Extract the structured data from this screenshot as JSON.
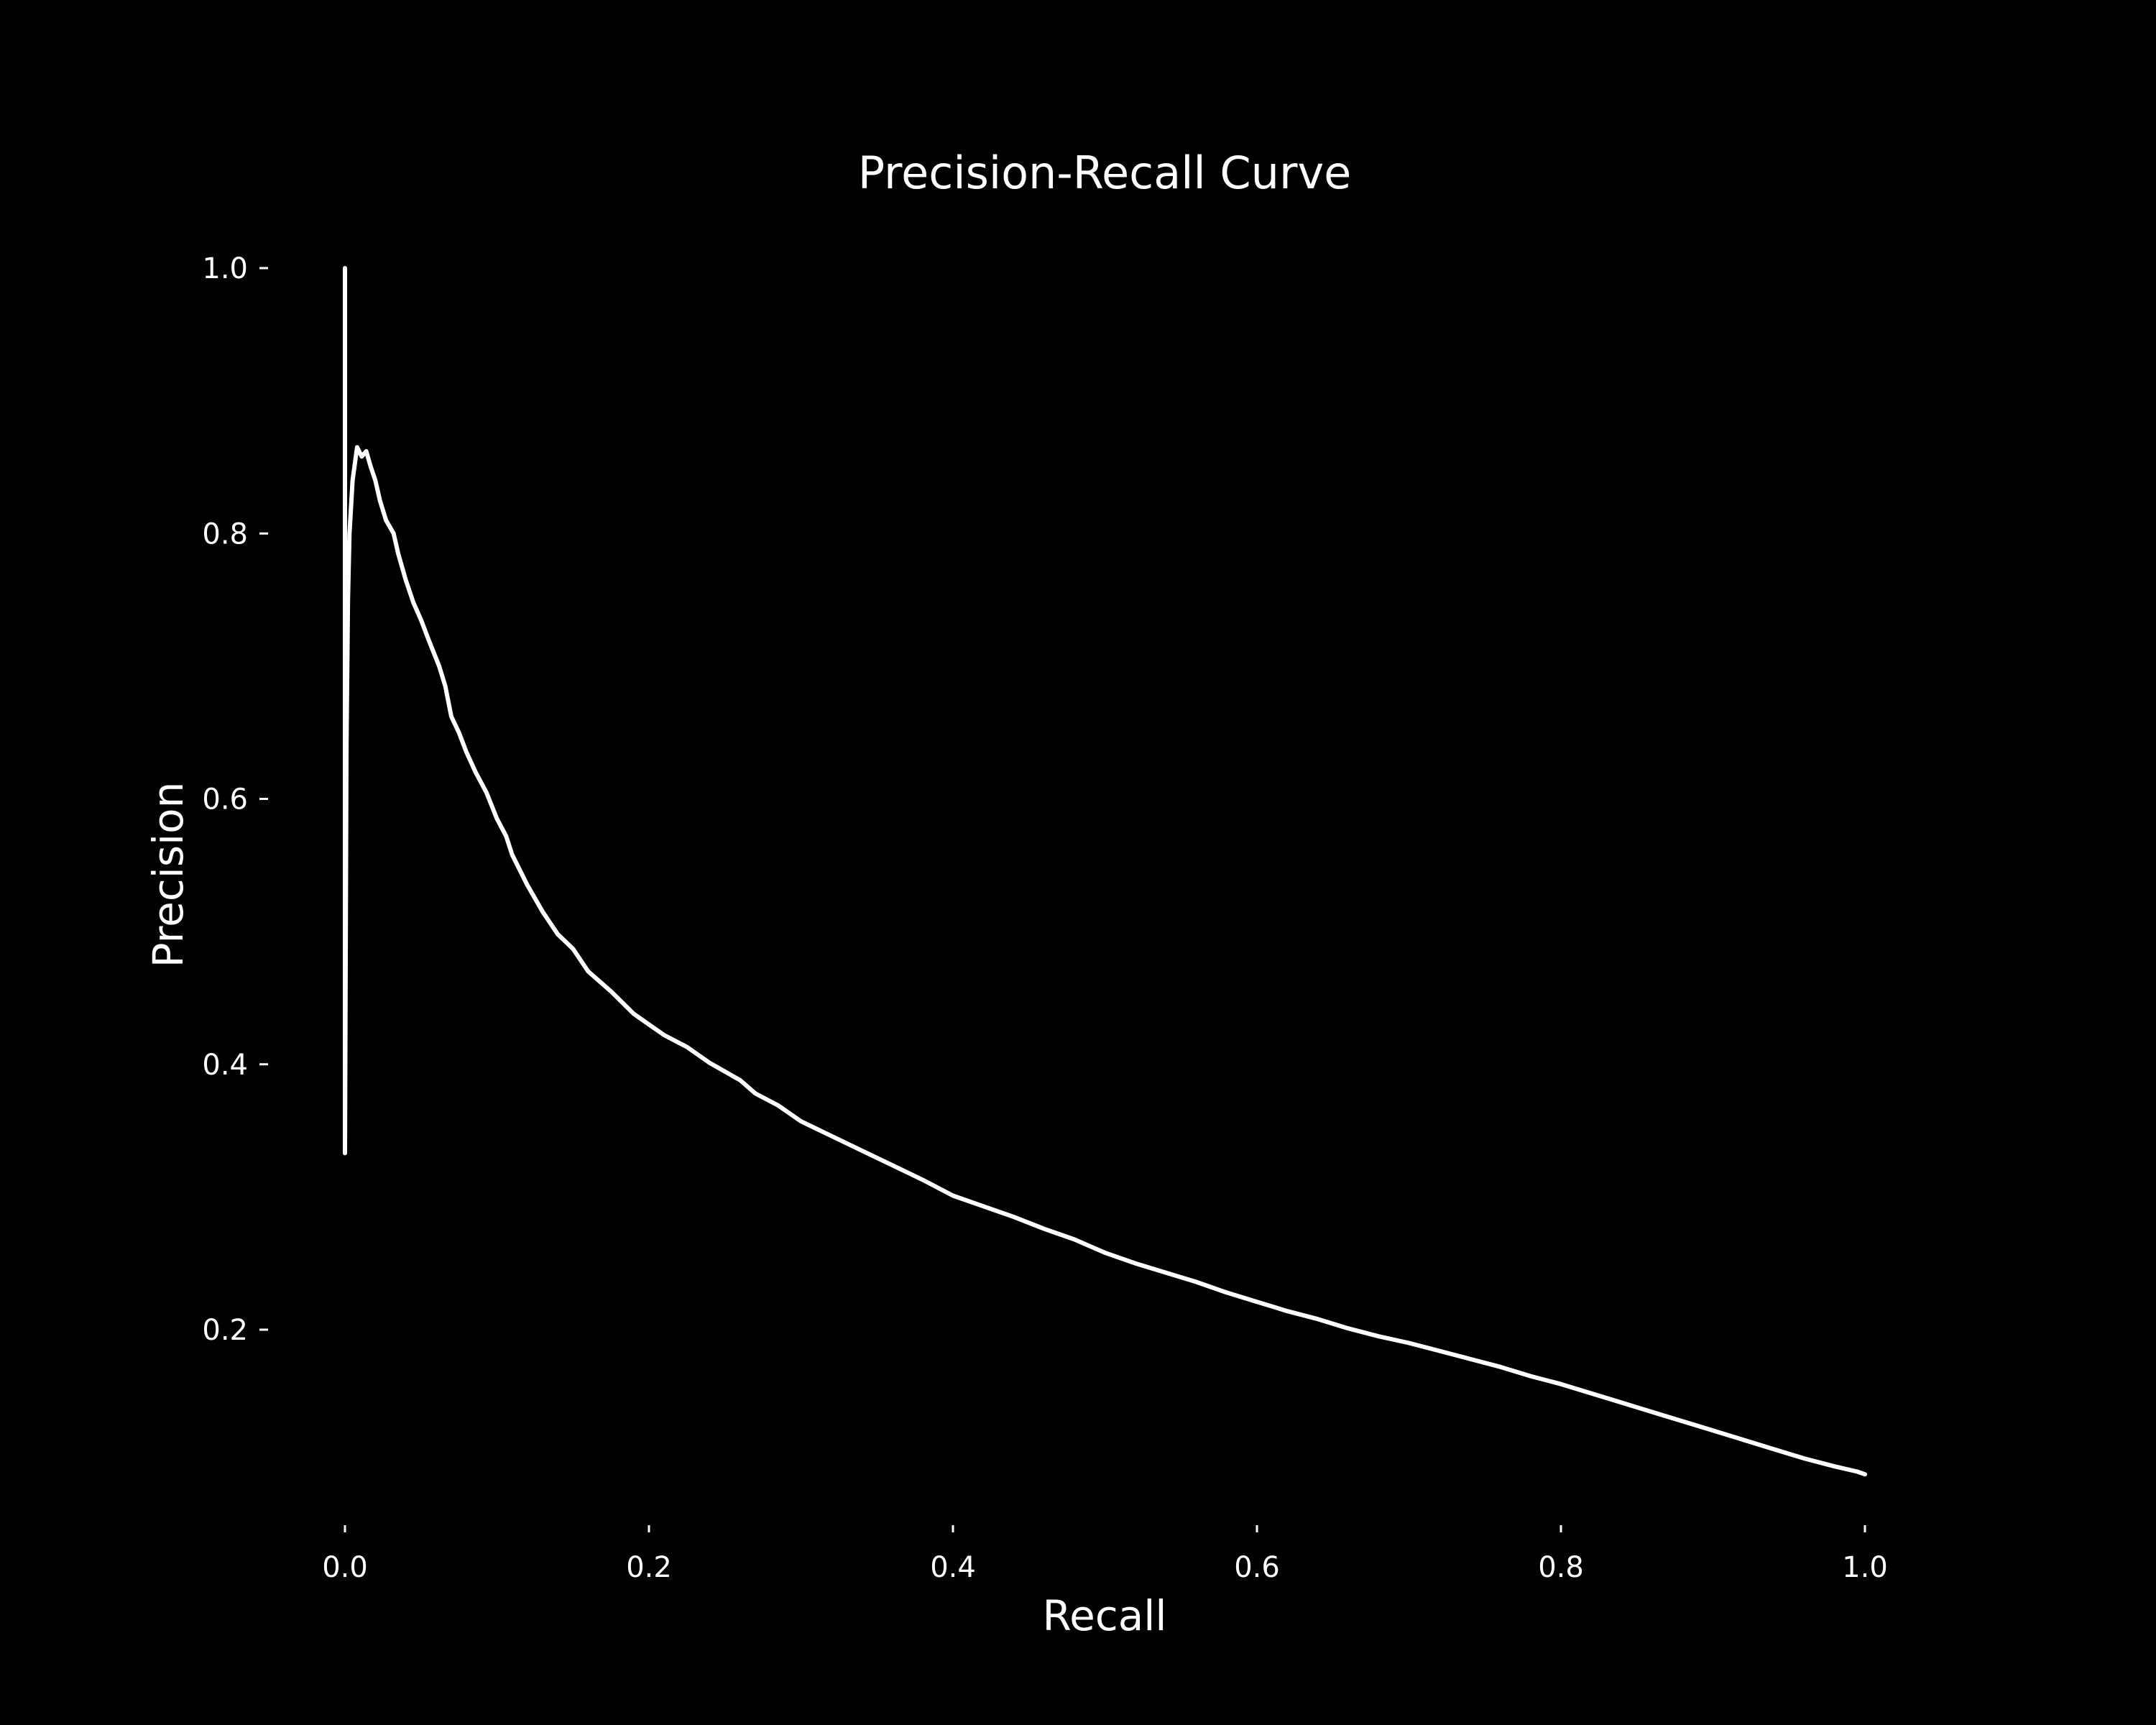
{
  "chart_data": {
    "type": "line",
    "title": "Precision-Recall Curve",
    "xlabel": "Recall",
    "ylabel": "Precision",
    "xlim": [
      -0.05,
      1.05
    ],
    "ylim": [
      0.0557,
      1.0
    ],
    "grid": false,
    "legend": "none",
    "colors": {
      "background": "#000000",
      "line": "#ffffff",
      "text": "#ffffff"
    },
    "xticks": [
      {
        "value": 0.0,
        "label": "0.0"
      },
      {
        "value": 0.2,
        "label": "0.2"
      },
      {
        "value": 0.4,
        "label": "0.4"
      },
      {
        "value": 0.6,
        "label": "0.6"
      },
      {
        "value": 0.8,
        "label": "0.8"
      },
      {
        "value": 1.0,
        "label": "1.0"
      }
    ],
    "yticks": [
      {
        "value": 0.2,
        "label": "0.2"
      },
      {
        "value": 0.4,
        "label": "0.4"
      },
      {
        "value": 0.6,
        "label": "0.6"
      },
      {
        "value": 0.8,
        "label": "0.8"
      },
      {
        "value": 1.0,
        "label": "1.0"
      }
    ],
    "series": [
      {
        "points": [
          [
            0.0,
            1.0
          ],
          [
            0.0,
            0.333
          ],
          [
            0.001,
            0.64
          ],
          [
            0.002,
            0.75
          ],
          [
            0.003,
            0.8
          ],
          [
            0.005,
            0.84
          ],
          [
            0.008,
            0.865
          ],
          [
            0.011,
            0.858
          ],
          [
            0.014,
            0.862
          ],
          [
            0.017,
            0.85
          ],
          [
            0.02,
            0.84
          ],
          [
            0.023,
            0.825
          ],
          [
            0.027,
            0.81
          ],
          [
            0.032,
            0.8
          ],
          [
            0.035,
            0.785
          ],
          [
            0.04,
            0.765
          ],
          [
            0.045,
            0.748
          ],
          [
            0.05,
            0.735
          ],
          [
            0.055,
            0.72
          ],
          [
            0.062,
            0.7
          ],
          [
            0.066,
            0.685
          ],
          [
            0.07,
            0.662
          ],
          [
            0.075,
            0.65
          ],
          [
            0.08,
            0.635
          ],
          [
            0.086,
            0.62
          ],
          [
            0.093,
            0.605
          ],
          [
            0.1,
            0.585
          ],
          [
            0.106,
            0.572
          ],
          [
            0.11,
            0.558
          ],
          [
            0.12,
            0.535
          ],
          [
            0.13,
            0.515
          ],
          [
            0.14,
            0.498
          ],
          [
            0.15,
            0.487
          ],
          [
            0.16,
            0.47
          ],
          [
            0.175,
            0.455
          ],
          [
            0.19,
            0.438
          ],
          [
            0.2,
            0.43
          ],
          [
            0.21,
            0.422
          ],
          [
            0.225,
            0.413
          ],
          [
            0.24,
            0.401
          ],
          [
            0.26,
            0.388
          ],
          [
            0.27,
            0.378
          ],
          [
            0.285,
            0.369
          ],
          [
            0.3,
            0.357
          ],
          [
            0.32,
            0.346
          ],
          [
            0.34,
            0.335
          ],
          [
            0.36,
            0.324
          ],
          [
            0.38,
            0.313
          ],
          [
            0.4,
            0.301
          ],
          [
            0.42,
            0.293
          ],
          [
            0.44,
            0.285
          ],
          [
            0.46,
            0.276
          ],
          [
            0.48,
            0.268
          ],
          [
            0.5,
            0.258
          ],
          [
            0.52,
            0.25
          ],
          [
            0.54,
            0.243
          ],
          [
            0.56,
            0.236
          ],
          [
            0.58,
            0.228
          ],
          [
            0.6,
            0.221
          ],
          [
            0.62,
            0.214
          ],
          [
            0.64,
            0.208
          ],
          [
            0.66,
            0.201
          ],
          [
            0.68,
            0.195
          ],
          [
            0.7,
            0.19
          ],
          [
            0.72,
            0.184
          ],
          [
            0.74,
            0.178
          ],
          [
            0.76,
            0.172
          ],
          [
            0.78,
            0.165
          ],
          [
            0.8,
            0.159
          ],
          [
            0.82,
            0.152
          ],
          [
            0.84,
            0.145
          ],
          [
            0.86,
            0.138
          ],
          [
            0.88,
            0.131
          ],
          [
            0.9,
            0.124
          ],
          [
            0.92,
            0.117
          ],
          [
            0.94,
            0.11
          ],
          [
            0.96,
            0.103
          ],
          [
            0.98,
            0.097
          ],
          [
            0.995,
            0.093
          ],
          [
            1.0,
            0.091
          ]
        ]
      }
    ]
  }
}
